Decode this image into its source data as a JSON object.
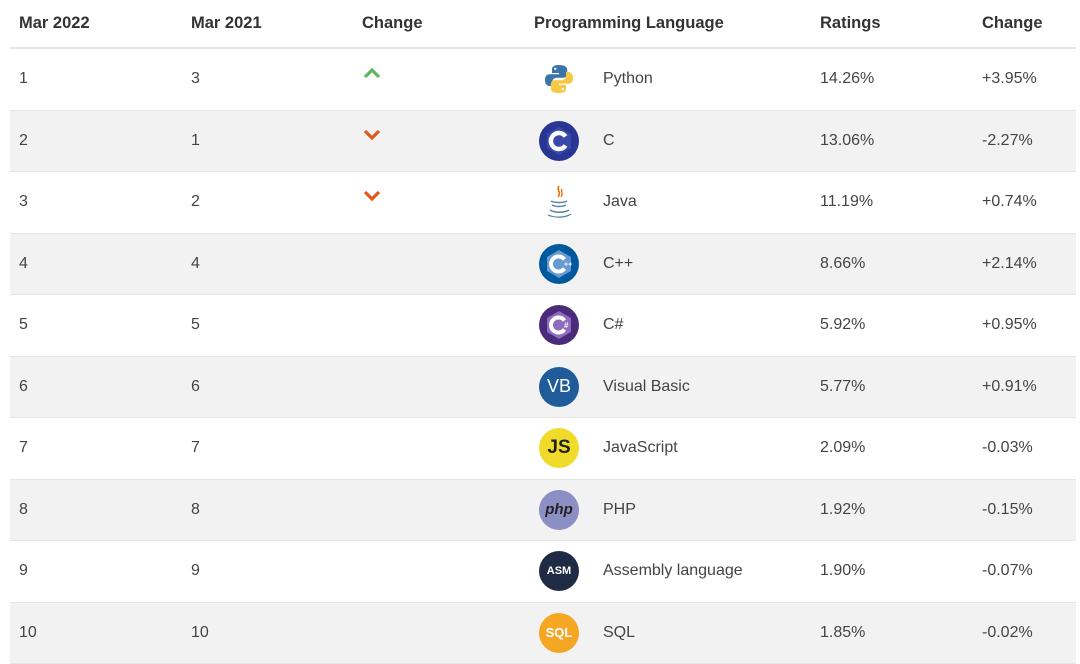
{
  "headers": {
    "mar2022": "Mar 2022",
    "mar2021": "Mar 2021",
    "change": "Change",
    "language": "Programming Language",
    "ratings": "Ratings",
    "change2": "Change"
  },
  "colors": {
    "up": "#5cb85c",
    "down": "#e05a1e",
    "alt_row": "#f2f2f2"
  },
  "rows": [
    {
      "rank2022": "1",
      "rank2021": "3",
      "trend": "up",
      "logo": "python-icon",
      "language": "Python",
      "rating": "14.26%",
      "change": "+3.95%"
    },
    {
      "rank2022": "2",
      "rank2021": "1",
      "trend": "down",
      "logo": "c-icon",
      "language": "C",
      "rating": "13.06%",
      "change": "-2.27%"
    },
    {
      "rank2022": "3",
      "rank2021": "2",
      "trend": "down",
      "logo": "java-icon",
      "language": "Java",
      "rating": "11.19%",
      "change": "+0.74%"
    },
    {
      "rank2022": "4",
      "rank2021": "4",
      "trend": "none",
      "logo": "cpp-icon",
      "language": "C++",
      "rating": "8.66%",
      "change": "+2.14%"
    },
    {
      "rank2022": "5",
      "rank2021": "5",
      "trend": "none",
      "logo": "csharp-icon",
      "language": "C#",
      "rating": "5.92%",
      "change": "+0.95%"
    },
    {
      "rank2022": "6",
      "rank2021": "6",
      "trend": "none",
      "logo": "visual-basic-icon",
      "language": "Visual Basic",
      "rating": "5.77%",
      "change": "+0.91%"
    },
    {
      "rank2022": "7",
      "rank2021": "7",
      "trend": "none",
      "logo": "javascript-icon",
      "language": "JavaScript",
      "rating": "2.09%",
      "change": "-0.03%"
    },
    {
      "rank2022": "8",
      "rank2021": "8",
      "trend": "none",
      "logo": "php-icon",
      "language": "PHP",
      "rating": "1.92%",
      "change": "-0.15%"
    },
    {
      "rank2022": "9",
      "rank2021": "9",
      "trend": "none",
      "logo": "assembly-icon",
      "language": "Assembly language",
      "rating": "1.90%",
      "change": "-0.07%"
    },
    {
      "rank2022": "10",
      "rank2021": "10",
      "trend": "none",
      "logo": "sql-icon",
      "language": "SQL",
      "rating": "1.85%",
      "change": "-0.02%"
    }
  ],
  "logo_text": {
    "vb": "VB",
    "js": "JS",
    "php": "php",
    "asm": "ASM",
    "sql": "SQL"
  }
}
